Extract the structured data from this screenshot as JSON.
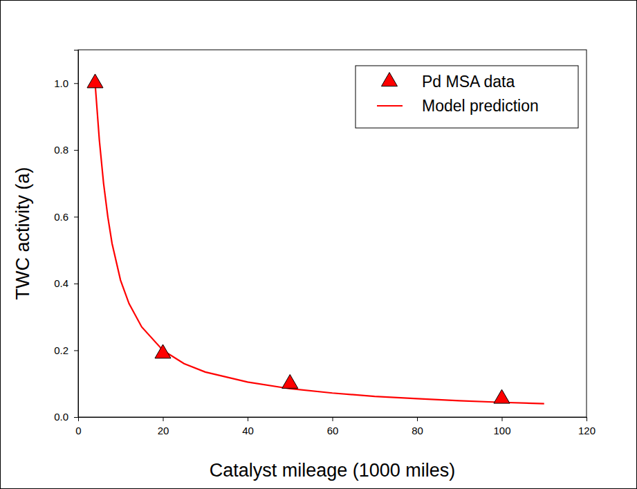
{
  "chart_data": {
    "type": "line",
    "x_label": "Catalyst mileage (1000 miles)",
    "y_label": "TWC activity (a)",
    "xlim": [
      0,
      120
    ],
    "ylim": [
      0,
      1.1
    ],
    "xticks": [
      0,
      20,
      40,
      60,
      80,
      100,
      120
    ],
    "yticks": [
      {
        "value": 0,
        "label": "0.0"
      },
      {
        "value": 0.2,
        "label": "0.2"
      },
      {
        "value": 0.4,
        "label": "0.4"
      },
      {
        "value": 0.6,
        "label": "0.6"
      },
      {
        "value": 0.8,
        "label": "0.8"
      },
      {
        "value": 1.0,
        "label": "1.0"
      }
    ],
    "grid": false,
    "legend": "upper right",
    "series": [
      {
        "name": "Pd MSA data",
        "type": "scatter",
        "marker": "triangle",
        "color": "#ff0000",
        "x": [
          4,
          20,
          50,
          100
        ],
        "values": [
          1.0,
          0.19,
          0.1,
          0.055
        ]
      },
      {
        "name": "Model prediction",
        "type": "line",
        "line_style": "solid",
        "color": "#ff0000",
        "x": [
          4,
          5,
          6,
          7,
          8,
          10,
          12,
          15,
          20,
          25,
          30,
          40,
          50,
          60,
          70,
          80,
          90,
          100,
          110
        ],
        "values": [
          1.0,
          0.83,
          0.7,
          0.6,
          0.52,
          0.41,
          0.34,
          0.27,
          0.2,
          0.16,
          0.135,
          0.105,
          0.085,
          0.072,
          0.062,
          0.055,
          0.049,
          0.044,
          0.04
        ]
      }
    ]
  }
}
